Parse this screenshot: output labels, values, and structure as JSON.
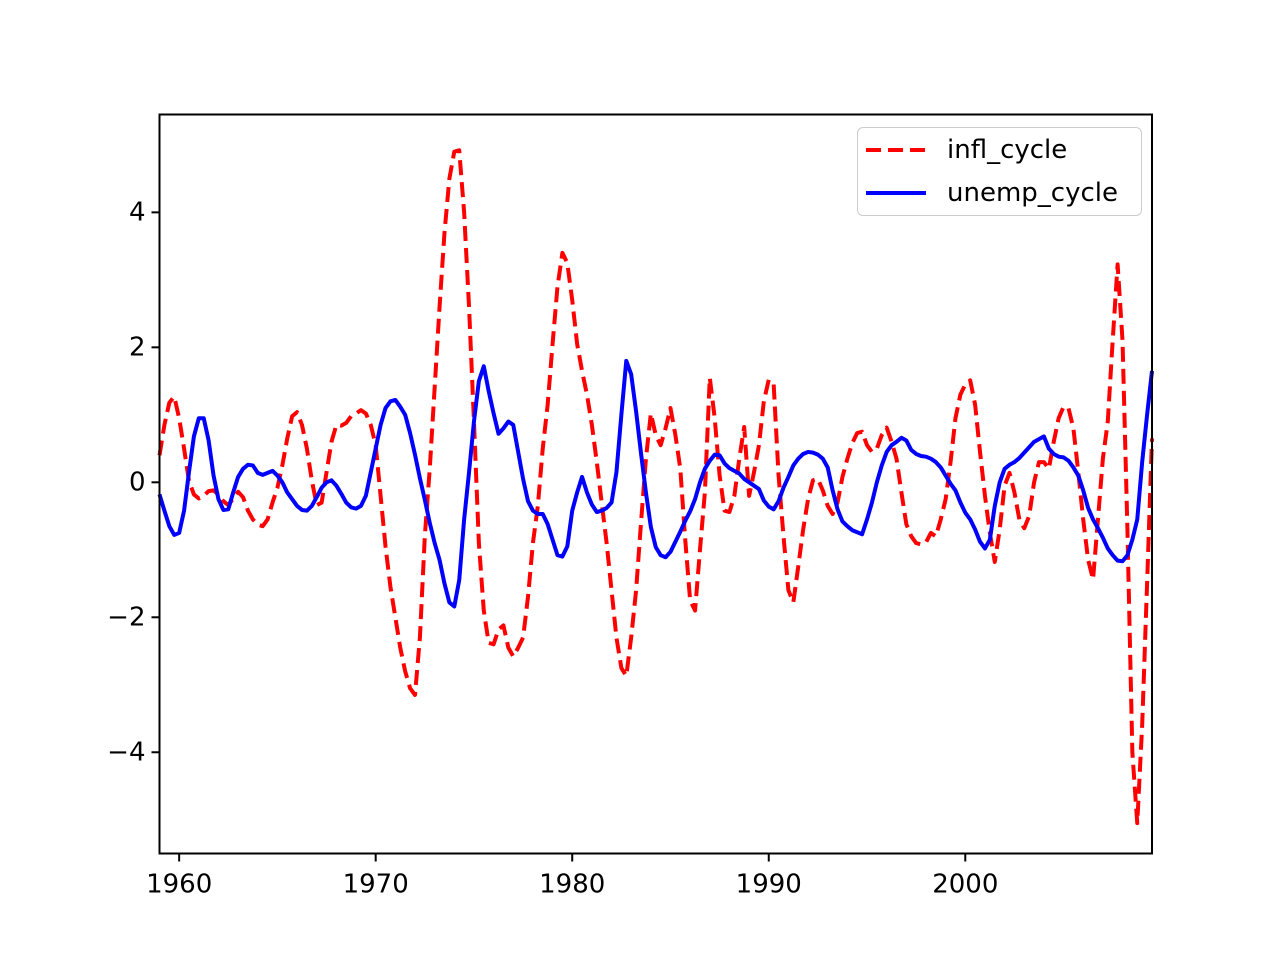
{
  "figure": {
    "background": "#ffffff",
    "frame_color": "#000000",
    "legend": {
      "position": "upper right",
      "items": [
        {
          "label": "infl_cycle",
          "color": "#ff0000",
          "style": "dashed"
        },
        {
          "label": "unemp_cycle",
          "color": "#0000ff",
          "style": "solid"
        }
      ]
    }
  },
  "chart_data": {
    "type": "line",
    "title": "",
    "xlabel": "",
    "ylabel": "",
    "grid": false,
    "legend_position": "upper right",
    "x_unit": "year (quarterly samples)",
    "xlim": [
      1959.0,
      2009.5
    ],
    "ylim": [
      -5.5,
      5.45
    ],
    "xticks": [
      {
        "value": 1960,
        "label": "1960"
      },
      {
        "value": 1970,
        "label": "1970"
      },
      {
        "value": 1980,
        "label": "1980"
      },
      {
        "value": 1990,
        "label": "1990"
      },
      {
        "value": 2000,
        "label": "2000"
      }
    ],
    "yticks": [
      {
        "value": -4,
        "label": "−4"
      },
      {
        "value": -2,
        "label": "−2"
      },
      {
        "value": 0,
        "label": "0"
      },
      {
        "value": 2,
        "label": "2"
      },
      {
        "value": 4,
        "label": "4"
      }
    ],
    "x": [
      1959.0,
      1959.25,
      1959.5,
      1959.75,
      1960.0,
      1960.25,
      1960.5,
      1960.75,
      1961.0,
      1961.25,
      1961.5,
      1961.75,
      1962.0,
      1962.25,
      1962.5,
      1962.75,
      1963.0,
      1963.25,
      1963.5,
      1963.75,
      1964.0,
      1964.25,
      1964.5,
      1964.75,
      1965.0,
      1965.25,
      1965.5,
      1965.75,
      1966.0,
      1966.25,
      1966.5,
      1966.75,
      1967.0,
      1967.25,
      1967.5,
      1967.75,
      1968.0,
      1968.25,
      1968.5,
      1968.75,
      1969.0,
      1969.25,
      1969.5,
      1969.75,
      1970.0,
      1970.25,
      1970.5,
      1970.75,
      1971.0,
      1971.25,
      1971.5,
      1971.75,
      1972.0,
      1972.25,
      1972.5,
      1972.75,
      1973.0,
      1973.25,
      1973.5,
      1973.75,
      1974.0,
      1974.25,
      1974.5,
      1974.75,
      1975.0,
      1975.25,
      1975.5,
      1975.75,
      1976.0,
      1976.25,
      1976.5,
      1976.75,
      1977.0,
      1977.25,
      1977.5,
      1977.75,
      1978.0,
      1978.25,
      1978.5,
      1978.75,
      1979.0,
      1979.25,
      1979.5,
      1979.75,
      1980.0,
      1980.25,
      1980.5,
      1980.75,
      1981.0,
      1981.25,
      1981.5,
      1981.75,
      1982.0,
      1982.25,
      1982.5,
      1982.75,
      1983.0,
      1983.25,
      1983.5,
      1983.75,
      1984.0,
      1984.25,
      1984.5,
      1984.75,
      1985.0,
      1985.25,
      1985.5,
      1985.75,
      1986.0,
      1986.25,
      1986.5,
      1986.75,
      1987.0,
      1987.25,
      1987.5,
      1987.75,
      1988.0,
      1988.25,
      1988.5,
      1988.75,
      1989.0,
      1989.25,
      1989.5,
      1989.75,
      1990.0,
      1990.25,
      1990.5,
      1990.75,
      1991.0,
      1991.25,
      1991.5,
      1991.75,
      1992.0,
      1992.25,
      1992.5,
      1992.75,
      1993.0,
      1993.25,
      1993.5,
      1993.75,
      1994.0,
      1994.25,
      1994.5,
      1994.75,
      1995.0,
      1995.25,
      1995.5,
      1995.75,
      1996.0,
      1996.25,
      1996.5,
      1996.75,
      1997.0,
      1997.25,
      1997.5,
      1997.75,
      1998.0,
      1998.25,
      1998.5,
      1998.75,
      1999.0,
      1999.25,
      1999.5,
      1999.75,
      2000.0,
      2000.25,
      2000.5,
      2000.75,
      2001.0,
      2001.25,
      2001.5,
      2001.75,
      2002.0,
      2002.25,
      2002.5,
      2002.75,
      2003.0,
      2003.25,
      2003.5,
      2003.75,
      2004.0,
      2004.25,
      2004.5,
      2004.75,
      2005.0,
      2005.25,
      2005.5,
      2005.75,
      2006.0,
      2006.25,
      2006.5,
      2006.75,
      2007.0,
      2007.25,
      2007.5,
      2007.75,
      2008.0,
      2008.25,
      2008.5,
      2008.75,
      2009.0,
      2009.25,
      2009.5
    ],
    "series": [
      {
        "name": "infl_cycle",
        "color": "#ff0000",
        "line_style": "dashed",
        "line_width": 4,
        "values": [
          0.4,
          0.85,
          1.18,
          1.27,
          0.95,
          0.5,
          0.02,
          -0.18,
          -0.24,
          -0.2,
          -0.13,
          -0.12,
          -0.18,
          -0.28,
          -0.34,
          -0.24,
          -0.14,
          -0.22,
          -0.42,
          -0.55,
          -0.63,
          -0.65,
          -0.55,
          -0.3,
          -0.08,
          0.25,
          0.65,
          0.98,
          1.04,
          0.85,
          0.5,
          0.03,
          -0.34,
          -0.3,
          0.15,
          0.6,
          0.85,
          0.84,
          0.88,
          0.98,
          1.02,
          1.07,
          1.02,
          0.85,
          0.55,
          -0.2,
          -0.95,
          -1.55,
          -2.0,
          -2.45,
          -2.8,
          -3.05,
          -3.15,
          -2.3,
          -0.8,
          0.2,
          1.4,
          2.6,
          3.7,
          4.5,
          4.9,
          4.92,
          4.0,
          2.6,
          0.9,
          -0.9,
          -1.9,
          -2.38,
          -2.4,
          -2.18,
          -2.12,
          -2.45,
          -2.58,
          -2.45,
          -2.3,
          -1.7,
          -0.9,
          -0.35,
          0.5,
          1.15,
          2.05,
          2.9,
          3.4,
          3.25,
          2.7,
          2.05,
          1.65,
          1.3,
          0.85,
          0.3,
          -0.3,
          -0.9,
          -1.6,
          -2.3,
          -2.75,
          -2.87,
          -2.3,
          -1.6,
          -0.6,
          0.35,
          1.02,
          0.7,
          0.55,
          0.8,
          1.1,
          0.7,
          0.2,
          -0.85,
          -1.75,
          -1.9,
          -1.0,
          -0.15,
          1.55,
          0.95,
          0.1,
          -0.42,
          -0.44,
          -0.2,
          0.35,
          0.82,
          -0.2,
          0.15,
          0.55,
          1.2,
          1.52,
          1.45,
          0.1,
          -0.8,
          -1.6,
          -1.78,
          -1.25,
          -0.7,
          -0.25,
          0.03,
          0.05,
          -0.12,
          -0.35,
          -0.47,
          -0.3,
          0.08,
          0.35,
          0.58,
          0.73,
          0.75,
          0.55,
          0.45,
          0.5,
          0.7,
          0.81,
          0.6,
          0.35,
          -0.15,
          -0.62,
          -0.8,
          -0.9,
          -0.92,
          -0.89,
          -0.75,
          -0.8,
          -0.55,
          -0.25,
          0.3,
          0.95,
          1.3,
          1.45,
          1.51,
          1.15,
          0.45,
          -0.2,
          -0.75,
          -1.18,
          -0.7,
          -0.05,
          0.14,
          -0.15,
          -0.55,
          -0.68,
          -0.5,
          0.0,
          0.3,
          0.3,
          0.2,
          0.6,
          0.95,
          1.12,
          1.1,
          0.8,
          0.15,
          -0.55,
          -1.15,
          -1.44,
          -0.55,
          0.35,
          0.9,
          2.1,
          3.23,
          2.1,
          -0.7,
          -4.0,
          -5.05,
          -3.6,
          -1.5,
          0.65
        ]
      },
      {
        "name": "unemp_cycle",
        "color": "#0000ff",
        "line_style": "solid",
        "line_width": 4,
        "values": [
          -0.18,
          -0.42,
          -0.65,
          -0.78,
          -0.75,
          -0.42,
          0.15,
          0.68,
          0.95,
          0.95,
          0.62,
          0.1,
          -0.25,
          -0.41,
          -0.4,
          -0.15,
          0.08,
          0.2,
          0.26,
          0.25,
          0.14,
          0.11,
          0.14,
          0.17,
          0.1,
          0.0,
          -0.15,
          -0.25,
          -0.35,
          -0.41,
          -0.42,
          -0.35,
          -0.22,
          -0.08,
          0.0,
          0.03,
          -0.05,
          -0.17,
          -0.3,
          -0.37,
          -0.39,
          -0.35,
          -0.2,
          0.15,
          0.5,
          0.85,
          1.1,
          1.2,
          1.22,
          1.12,
          1.0,
          0.73,
          0.41,
          0.06,
          -0.26,
          -0.6,
          -0.9,
          -1.15,
          -1.5,
          -1.78,
          -1.84,
          -1.45,
          -0.55,
          0.15,
          0.9,
          1.5,
          1.72,
          1.35,
          1.02,
          0.72,
          0.8,
          0.9,
          0.85,
          0.45,
          0.05,
          -0.28,
          -0.42,
          -0.47,
          -0.47,
          -0.62,
          -0.85,
          -1.08,
          -1.1,
          -0.95,
          -0.42,
          -0.15,
          0.08,
          -0.15,
          -0.33,
          -0.44,
          -0.42,
          -0.38,
          -0.3,
          0.15,
          1.0,
          1.8,
          1.6,
          1.05,
          0.43,
          -0.15,
          -0.66,
          -0.96,
          -1.08,
          -1.11,
          -1.03,
          -0.88,
          -0.73,
          -0.57,
          -0.43,
          -0.25,
          0.0,
          0.2,
          0.32,
          0.41,
          0.4,
          0.28,
          0.21,
          0.17,
          0.13,
          0.05,
          0.0,
          -0.05,
          -0.1,
          -0.27,
          -0.36,
          -0.4,
          -0.28,
          -0.08,
          0.08,
          0.25,
          0.35,
          0.42,
          0.45,
          0.44,
          0.41,
          0.35,
          0.22,
          -0.12,
          -0.4,
          -0.58,
          -0.65,
          -0.71,
          -0.74,
          -0.77,
          -0.55,
          -0.3,
          0.0,
          0.25,
          0.45,
          0.55,
          0.6,
          0.66,
          0.62,
          0.48,
          0.42,
          0.39,
          0.38,
          0.35,
          0.3,
          0.22,
          0.1,
          -0.02,
          -0.12,
          -0.3,
          -0.45,
          -0.55,
          -0.7,
          -0.88,
          -0.98,
          -0.85,
          -0.35,
          0.0,
          0.2,
          0.26,
          0.3,
          0.36,
          0.44,
          0.52,
          0.6,
          0.64,
          0.68,
          0.5,
          0.42,
          0.38,
          0.37,
          0.32,
          0.22,
          0.1,
          -0.12,
          -0.38,
          -0.55,
          -0.68,
          -0.82,
          -0.98,
          -1.08,
          -1.16,
          -1.17,
          -1.08,
          -0.85,
          -0.55,
          0.3,
          1.0,
          1.65
        ]
      }
    ]
  }
}
